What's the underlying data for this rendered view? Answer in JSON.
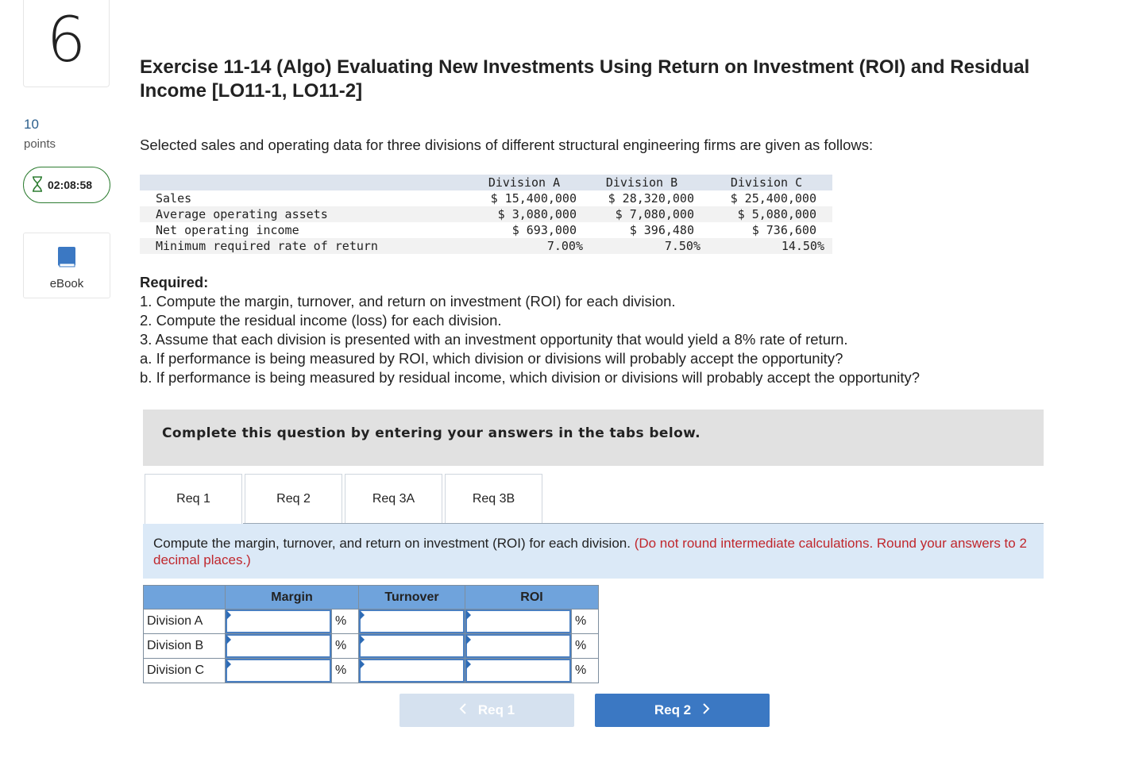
{
  "question": {
    "number": "6",
    "points_value": "10",
    "points_label": "points",
    "timer": "02:08:58",
    "ebook_label": "eBook"
  },
  "title": "Exercise 11-14 (Algo) Evaluating New Investments Using Return on Investment (ROI) and Residual Income [LO11-1, LO11-2]",
  "intro": "Selected sales and operating data for three divisions of different structural engineering firms are given as follows:",
  "data_table": {
    "headers": [
      "Division A",
      "Division B",
      "Division C"
    ],
    "rows": [
      {
        "label": "Sales",
        "values": [
          "$ 15,400,000",
          "$ 28,320,000",
          "$ 25,400,000"
        ]
      },
      {
        "label": "Average operating assets",
        "values": [
          "$ 3,080,000",
          "$ 7,080,000",
          "$ 5,080,000"
        ]
      },
      {
        "label": "Net operating income",
        "values": [
          "$ 693,000",
          "$ 396,480",
          "$ 736,600"
        ]
      },
      {
        "label": "Minimum required rate of return",
        "values": [
          "7.00%",
          "7.50%",
          "14.50%"
        ]
      }
    ]
  },
  "required": {
    "heading": "Required:",
    "items": [
      "1. Compute the margin, turnover, and return on investment (ROI) for each division.",
      "2. Compute the residual income (loss) for each division.",
      "3. Assume that each division is presented with an investment opportunity that would yield a 8% rate of return.",
      "a. If performance is being measured by ROI, which division or divisions will probably accept the opportunity?",
      "b. If performance is being measured by residual income, which division or divisions will probably accept the opportunity?"
    ]
  },
  "instructions": "Complete this question by entering your answers in the tabs below.",
  "tabs": [
    "Req 1",
    "Req 2",
    "Req 3A",
    "Req 3B"
  ],
  "prompt": {
    "text": "Compute the margin, turnover, and return on investment (ROI) for each division.",
    "note": "(Do not round intermediate calculations. Round your answers to 2 decimal places.)"
  },
  "answer_table": {
    "columns": [
      "Margin",
      "Turnover",
      "ROI"
    ],
    "rows": [
      "Division A",
      "Division B",
      "Division C"
    ],
    "unit": "%"
  },
  "nav": {
    "prev": "Req 1",
    "next": "Req 2"
  }
}
